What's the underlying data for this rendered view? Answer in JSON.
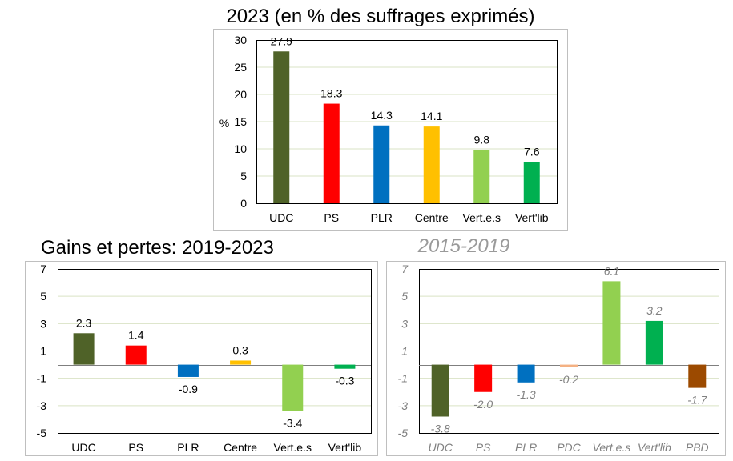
{
  "chart_data": [
    {
      "type": "bar",
      "title": "2023 (en % des suffrages exprimés)",
      "ylabel": "%",
      "ylim": [
        0,
        30
      ],
      "yticks": [
        0,
        5,
        10,
        15,
        20,
        25,
        30
      ],
      "categories": [
        "UDC",
        "PS",
        "PLR",
        "Centre",
        "Vert.e.s",
        "Vert'lib"
      ],
      "values": [
        27.9,
        18.3,
        14.3,
        14.1,
        9.8,
        7.6
      ],
      "colors": [
        "#4f6228",
        "#ff0000",
        "#0070c0",
        "#ffc000",
        "#92d050",
        "#00b050"
      ]
    },
    {
      "type": "bar",
      "title": "Gains et pertes: 2019-2023",
      "ylim": [
        -5,
        7
      ],
      "yticks": [
        -5,
        -3,
        -1,
        1,
        3,
        5,
        7
      ],
      "categories": [
        "UDC",
        "PS",
        "PLR",
        "Centre",
        "Vert.e.s",
        "Vert'lib"
      ],
      "values": [
        2.3,
        1.4,
        -0.9,
        0.3,
        -3.4,
        -0.3
      ],
      "colors": [
        "#4f6228",
        "#ff0000",
        "#0070c0",
        "#ffc000",
        "#92d050",
        "#00b050"
      ]
    },
    {
      "type": "bar",
      "title": "2015-2019",
      "ylim": [
        -5,
        7
      ],
      "yticks": [
        -5,
        -3,
        -1,
        1,
        3,
        5,
        7
      ],
      "categories": [
        "UDC",
        "PS",
        "PLR",
        "PDC",
        "Vert.e.s",
        "Vert'lib",
        "PBD"
      ],
      "values": [
        -3.8,
        -2.0,
        -1.3,
        -0.2,
        6.1,
        3.2,
        -1.7
      ],
      "colors": [
        "#4f6228",
        "#ff0000",
        "#0070c0",
        "#f4b183",
        "#92d050",
        "#00b050",
        "#9c4a00"
      ]
    }
  ]
}
